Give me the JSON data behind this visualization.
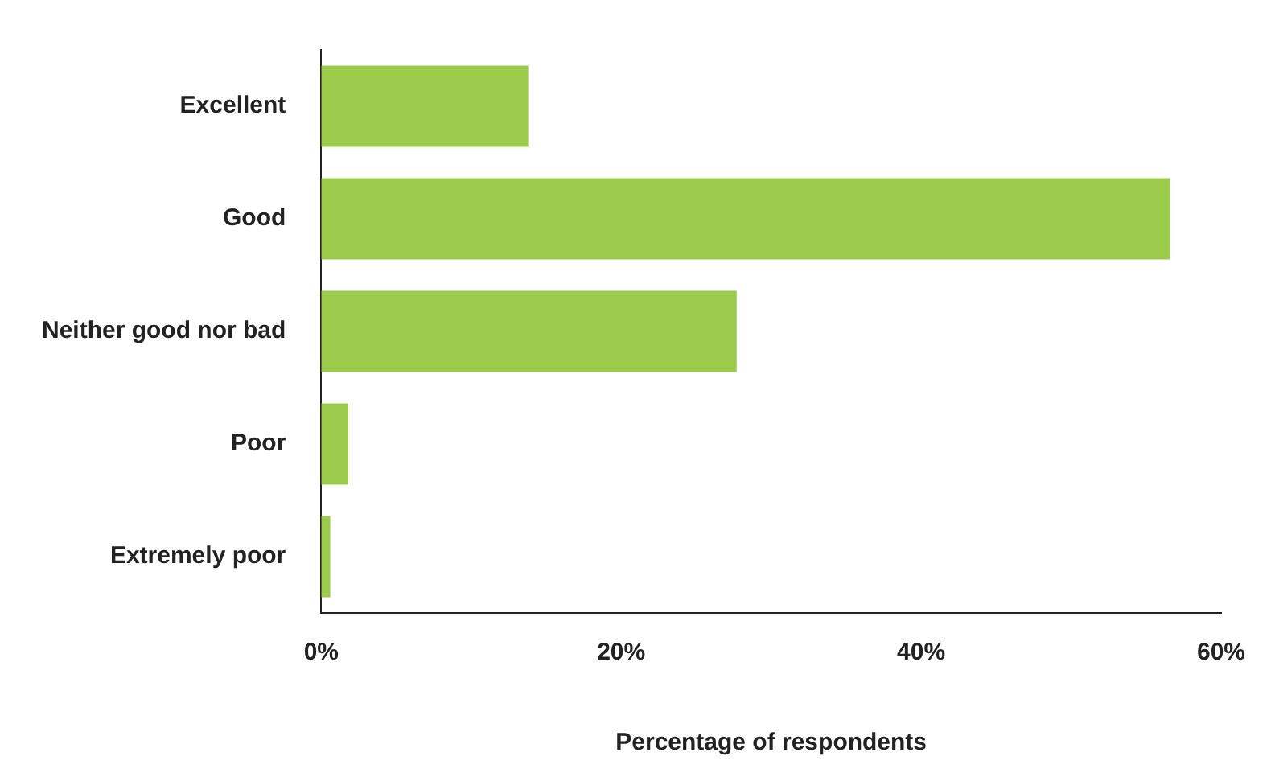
{
  "chart_data": {
    "type": "bar",
    "orientation": "horizontal",
    "xlabel": "Percentage of respondents",
    "categories": [
      "Excellent",
      "Good",
      "Neither good nor bad",
      "Poor",
      "Extremely poor"
    ],
    "values": [
      13.8,
      56.6,
      27.7,
      1.8,
      0.6
    ],
    "color": "#9bcb4b",
    "xlim": [
      0,
      60
    ],
    "xticks": [
      {
        "value": 0,
        "label": "0%"
      },
      {
        "value": 20,
        "label": "20%"
      },
      {
        "value": 40,
        "label": "40%"
      },
      {
        "value": 60,
        "label": "60%"
      }
    ],
    "grid": false,
    "legend": false
  }
}
